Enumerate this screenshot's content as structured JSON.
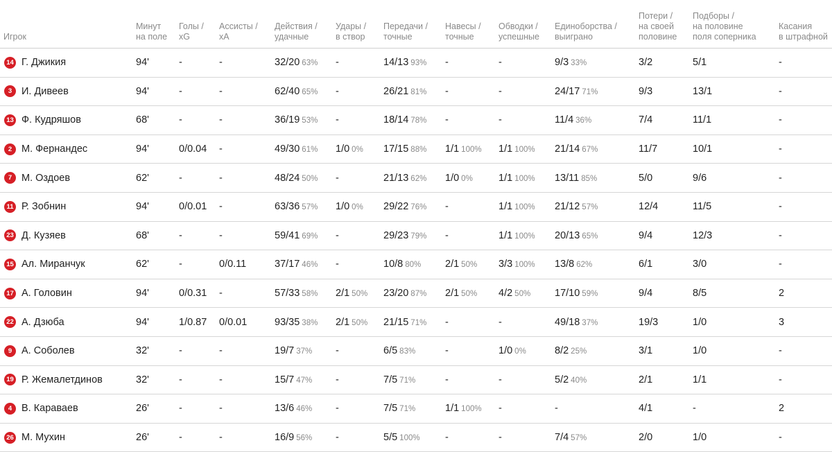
{
  "headers": [
    {
      "key": "player",
      "line1": "",
      "line2": "Игрок"
    },
    {
      "key": "minutes",
      "line1": "Минут",
      "line2": "на поле"
    },
    {
      "key": "goals",
      "line1": "Голы /",
      "line2": "xG"
    },
    {
      "key": "assists",
      "line1": "Ассисты /",
      "line2": "xA"
    },
    {
      "key": "actions",
      "line1": "Действия /",
      "line2": "удачные"
    },
    {
      "key": "shots",
      "line1": "Удары /",
      "line2": "в створ"
    },
    {
      "key": "passes",
      "line1": "Передачи /",
      "line2": "точные"
    },
    {
      "key": "crosses",
      "line1": "Навесы /",
      "line2": "точные"
    },
    {
      "key": "dribbles",
      "line1": "Обводки /",
      "line2": "успешные"
    },
    {
      "key": "duels",
      "line1": "Единоборства /",
      "line2": "выиграно"
    },
    {
      "key": "losses",
      "line0": "Потери /",
      "line1": "на своей",
      "line2": "половине"
    },
    {
      "key": "recoveries",
      "line0": "Подборы /",
      "line1": "на половине",
      "line2": "поля соперника"
    },
    {
      "key": "touches",
      "line1": "Касания",
      "line2": "в штрафной"
    }
  ],
  "rows": [
    {
      "number": "14",
      "name": "Г. Джикия",
      "minutes": "94'",
      "goals": "-",
      "assists": "-",
      "actions": "32/20",
      "actions_pct": "63%",
      "shots": "-",
      "shots_pct": "",
      "passes": "14/13",
      "passes_pct": "93%",
      "crosses": "-",
      "crosses_pct": "",
      "dribbles": "-",
      "dribbles_pct": "",
      "duels": "9/3",
      "duels_pct": "33%",
      "losses": "3/2",
      "recoveries": "5/1",
      "touches": "-"
    },
    {
      "number": "3",
      "name": "И. Дивеев",
      "minutes": "94'",
      "goals": "-",
      "assists": "-",
      "actions": "62/40",
      "actions_pct": "65%",
      "shots": "-",
      "shots_pct": "",
      "passes": "26/21",
      "passes_pct": "81%",
      "crosses": "-",
      "crosses_pct": "",
      "dribbles": "-",
      "dribbles_pct": "",
      "duels": "24/17",
      "duels_pct": "71%",
      "losses": "9/3",
      "recoveries": "13/1",
      "touches": "-"
    },
    {
      "number": "13",
      "name": "Ф. Кудряшов",
      "minutes": "68'",
      "goals": "-",
      "assists": "-",
      "actions": "36/19",
      "actions_pct": "53%",
      "shots": "-",
      "shots_pct": "",
      "passes": "18/14",
      "passes_pct": "78%",
      "crosses": "-",
      "crosses_pct": "",
      "dribbles": "-",
      "dribbles_pct": "",
      "duels": "11/4",
      "duels_pct": "36%",
      "losses": "7/4",
      "recoveries": "11/1",
      "touches": "-"
    },
    {
      "number": "2",
      "name": "М. Фернандес",
      "minutes": "94'",
      "goals": "0/0.04",
      "assists": "-",
      "actions": "49/30",
      "actions_pct": "61%",
      "shots": "1/0",
      "shots_pct": "0%",
      "passes": "17/15",
      "passes_pct": "88%",
      "crosses": "1/1",
      "crosses_pct": "100%",
      "dribbles": "1/1",
      "dribbles_pct": "100%",
      "duels": "21/14",
      "duels_pct": "67%",
      "losses": "11/7",
      "recoveries": "10/1",
      "touches": "-"
    },
    {
      "number": "7",
      "name": "М. Оздоев",
      "minutes": "62'",
      "goals": "-",
      "assists": "-",
      "actions": "48/24",
      "actions_pct": "50%",
      "shots": "-",
      "shots_pct": "",
      "passes": "21/13",
      "passes_pct": "62%",
      "crosses": "1/0",
      "crosses_pct": "0%",
      "dribbles": "1/1",
      "dribbles_pct": "100%",
      "duels": "13/11",
      "duels_pct": "85%",
      "losses": "5/0",
      "recoveries": "9/6",
      "touches": "-"
    },
    {
      "number": "11",
      "name": "Р. Зобнин",
      "minutes": "94'",
      "goals": "0/0.01",
      "assists": "-",
      "actions": "63/36",
      "actions_pct": "57%",
      "shots": "1/0",
      "shots_pct": "0%",
      "passes": "29/22",
      "passes_pct": "76%",
      "crosses": "-",
      "crosses_pct": "",
      "dribbles": "1/1",
      "dribbles_pct": "100%",
      "duels": "21/12",
      "duels_pct": "57%",
      "losses": "12/4",
      "recoveries": "11/5",
      "touches": "-"
    },
    {
      "number": "23",
      "name": "Д. Кузяев",
      "minutes": "68'",
      "goals": "-",
      "assists": "-",
      "actions": "59/41",
      "actions_pct": "69%",
      "shots": "-",
      "shots_pct": "",
      "passes": "29/23",
      "passes_pct": "79%",
      "crosses": "-",
      "crosses_pct": "",
      "dribbles": "1/1",
      "dribbles_pct": "100%",
      "duels": "20/13",
      "duels_pct": "65%",
      "losses": "9/4",
      "recoveries": "12/3",
      "touches": "-"
    },
    {
      "number": "15",
      "name": "Ал. Миранчук",
      "minutes": "62'",
      "goals": "-",
      "assists": "0/0.11",
      "actions": "37/17",
      "actions_pct": "46%",
      "shots": "-",
      "shots_pct": "",
      "passes": "10/8",
      "passes_pct": "80%",
      "crosses": "2/1",
      "crosses_pct": "50%",
      "dribbles": "3/3",
      "dribbles_pct": "100%",
      "duels": "13/8",
      "duels_pct": "62%",
      "losses": "6/1",
      "recoveries": "3/0",
      "touches": "-"
    },
    {
      "number": "17",
      "name": "А. Головин",
      "minutes": "94'",
      "goals": "0/0.31",
      "assists": "-",
      "actions": "57/33",
      "actions_pct": "58%",
      "shots": "2/1",
      "shots_pct": "50%",
      "passes": "23/20",
      "passes_pct": "87%",
      "crosses": "2/1",
      "crosses_pct": "50%",
      "dribbles": "4/2",
      "dribbles_pct": "50%",
      "duels": "17/10",
      "duels_pct": "59%",
      "losses": "9/4",
      "recoveries": "8/5",
      "touches": "2"
    },
    {
      "number": "22",
      "name": "А. Дзюба",
      "minutes": "94'",
      "goals": "1/0.87",
      "assists": "0/0.01",
      "actions": "93/35",
      "actions_pct": "38%",
      "shots": "2/1",
      "shots_pct": "50%",
      "passes": "21/15",
      "passes_pct": "71%",
      "crosses": "-",
      "crosses_pct": "",
      "dribbles": "-",
      "dribbles_pct": "",
      "duels": "49/18",
      "duels_pct": "37%",
      "losses": "19/3",
      "recoveries": "1/0",
      "touches": "3"
    },
    {
      "number": "9",
      "name": "А. Соболев",
      "minutes": "32'",
      "goals": "-",
      "assists": "-",
      "actions": "19/7",
      "actions_pct": "37%",
      "shots": "-",
      "shots_pct": "",
      "passes": "6/5",
      "passes_pct": "83%",
      "crosses": "-",
      "crosses_pct": "",
      "dribbles": "1/0",
      "dribbles_pct": "0%",
      "duels": "8/2",
      "duels_pct": "25%",
      "losses": "3/1",
      "recoveries": "1/0",
      "touches": "-"
    },
    {
      "number": "19",
      "name": "Р. Жемалетдинов",
      "minutes": "32'",
      "goals": "-",
      "assists": "-",
      "actions": "15/7",
      "actions_pct": "47%",
      "shots": "-",
      "shots_pct": "",
      "passes": "7/5",
      "passes_pct": "71%",
      "crosses": "-",
      "crosses_pct": "",
      "dribbles": "-",
      "dribbles_pct": "",
      "duels": "5/2",
      "duels_pct": "40%",
      "losses": "2/1",
      "recoveries": "1/1",
      "touches": "-"
    },
    {
      "number": "4",
      "name": "В. Караваев",
      "minutes": "26'",
      "goals": "-",
      "assists": "-",
      "actions": "13/6",
      "actions_pct": "46%",
      "shots": "-",
      "shots_pct": "",
      "passes": "7/5",
      "passes_pct": "71%",
      "crosses": "1/1",
      "crosses_pct": "100%",
      "dribbles": "-",
      "dribbles_pct": "",
      "duels": "-",
      "duels_pct": "",
      "losses": "4/1",
      "recoveries": "-",
      "touches": "2"
    },
    {
      "number": "26",
      "name": "М. Мухин",
      "minutes": "26'",
      "goals": "-",
      "assists": "-",
      "actions": "16/9",
      "actions_pct": "56%",
      "shots": "-",
      "shots_pct": "",
      "passes": "5/5",
      "passes_pct": "100%",
      "crosses": "-",
      "crosses_pct": "",
      "dribbles": "-",
      "dribbles_pct": "",
      "duels": "7/4",
      "duels_pct": "57%",
      "losses": "2/0",
      "recoveries": "1/0",
      "touches": "-"
    }
  ],
  "colors": {
    "badge": "#d61f26",
    "header_text": "#8a8a8a",
    "pct_text": "#8a8a8a"
  }
}
